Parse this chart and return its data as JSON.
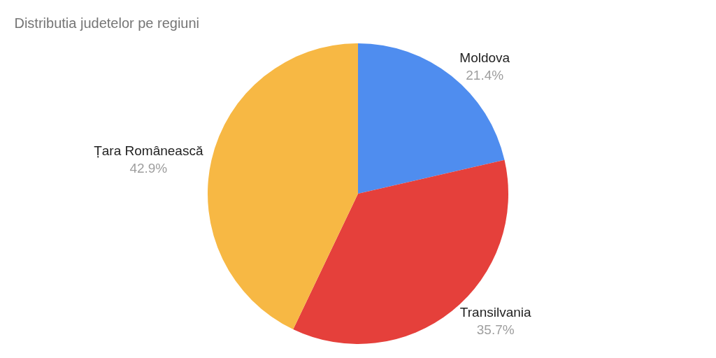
{
  "chart_data": {
    "type": "pie",
    "title": "Distributia judetelor pe regiuni",
    "categories": [
      "Moldova",
      "Transilvania",
      "Țara Românească"
    ],
    "values": [
      21.4,
      35.7,
      42.9
    ],
    "value_labels": [
      "21.4%",
      "35.7%",
      "42.9%"
    ],
    "colors": [
      "#4f8def",
      "#e5403b",
      "#f7b844"
    ],
    "legend": false
  }
}
